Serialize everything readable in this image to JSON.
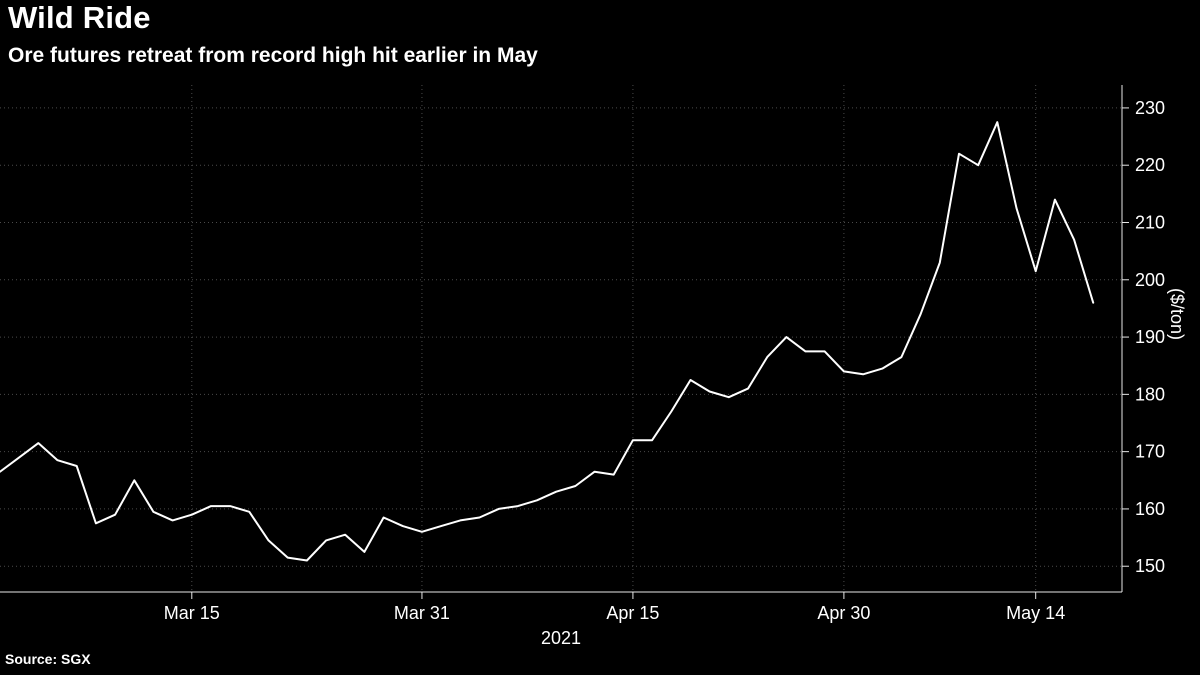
{
  "header": {
    "title": "Wild Ride",
    "subtitle": "Ore futures retreat from record high hit earlier in May"
  },
  "footer": {
    "source": "Source: SGX"
  },
  "chart_data": {
    "type": "line",
    "title": "Wild Ride",
    "subtitle": "Ore futures retreat from record high hit earlier in May",
    "ylabel": "($/ton)",
    "xlabel": "2021",
    "line_color": "#ffffff",
    "background": "#000000",
    "grid_color": "#4a4a4a",
    "axis_color": "#e8e8e8",
    "grid": "dotted",
    "legend": "none",
    "ylim": [
      145.5,
      234
    ],
    "xlim": [
      0,
      58.5
    ],
    "y_ticks": [
      150,
      160,
      170,
      180,
      190,
      200,
      210,
      220,
      230
    ],
    "x_ticks": [
      {
        "i": 10,
        "label": "Mar 15"
      },
      {
        "i": 22,
        "label": "Mar 31"
      },
      {
        "i": 33,
        "label": "Apr 15"
      },
      {
        "i": 44,
        "label": "Apr 30"
      },
      {
        "i": 54,
        "label": "May 14"
      }
    ],
    "x": [
      "Mar 1",
      "Mar 2",
      "Mar 3",
      "Mar 4",
      "Mar 5",
      "Mar 8",
      "Mar 9",
      "Mar 10",
      "Mar 11",
      "Mar 12",
      "Mar 15",
      "Mar 16",
      "Mar 17",
      "Mar 18",
      "Mar 19",
      "Mar 22",
      "Mar 23",
      "Mar 24",
      "Mar 25",
      "Mar 26",
      "Mar 29",
      "Mar 30",
      "Mar 31",
      "Apr 1",
      "Apr 2",
      "Apr 5",
      "Apr 6",
      "Apr 7",
      "Apr 8",
      "Apr 9",
      "Apr 12",
      "Apr 13",
      "Apr 14",
      "Apr 15",
      "Apr 16",
      "Apr 19",
      "Apr 20",
      "Apr 21",
      "Apr 22",
      "Apr 23",
      "Apr 26",
      "Apr 27",
      "Apr 28",
      "Apr 29",
      "Apr 30",
      "May 3",
      "May 4",
      "May 5",
      "May 6",
      "May 7",
      "May 10",
      "May 11",
      "May 12",
      "May 13",
      "May 14",
      "May 17",
      "May 18",
      "May 19"
    ],
    "values": [
      166.5,
      169,
      171.5,
      168.5,
      167.5,
      157.5,
      159,
      165,
      159.5,
      158,
      159,
      160.5,
      160.5,
      159.5,
      154.5,
      151.5,
      151,
      154.5,
      155.5,
      152.5,
      158.5,
      157,
      156,
      157,
      158,
      158.5,
      160,
      160.5,
      161.5,
      163,
      164,
      166.5,
      166,
      172,
      172,
      177,
      182.5,
      180.5,
      179.5,
      181,
      186.5,
      190,
      187.5,
      187.5,
      184,
      183.5,
      184.5,
      186.5,
      194,
      203,
      222,
      220,
      227.5,
      212.5,
      201.5,
      214,
      207,
      196
    ]
  }
}
